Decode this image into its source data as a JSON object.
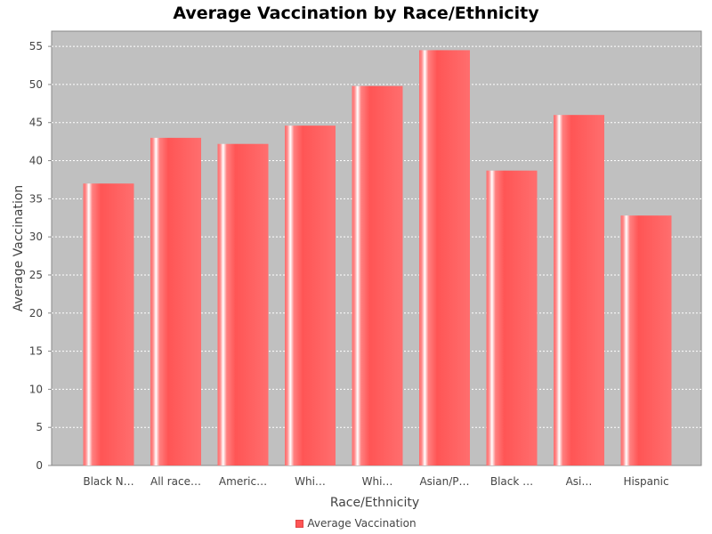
{
  "chart_data": {
    "type": "bar",
    "title": "Average Vaccination by Race/Ethnicity",
    "xlabel": "Race/Ethnicity",
    "ylabel": "Average Vaccination",
    "categories": [
      "Black N…",
      "All race…",
      "Americ…",
      "Whi…",
      "Whi…",
      "Asian/P…",
      "Black …",
      "Asi…",
      "Hispanic"
    ],
    "series": [
      {
        "name": "Average Vaccination",
        "values": [
          37.0,
          43.0,
          42.2,
          44.6,
          49.8,
          54.5,
          38.7,
          46.0,
          32.8
        ]
      }
    ],
    "ylim": [
      0,
      57
    ],
    "yticks": [
      0,
      5,
      10,
      15,
      20,
      25,
      30,
      35,
      40,
      45,
      50,
      55
    ],
    "grid": true,
    "legend_position": "bottom",
    "colors": {
      "bar": "#ff5555",
      "plot_background": "#c0c0c0",
      "grid": "#ffffff"
    }
  }
}
